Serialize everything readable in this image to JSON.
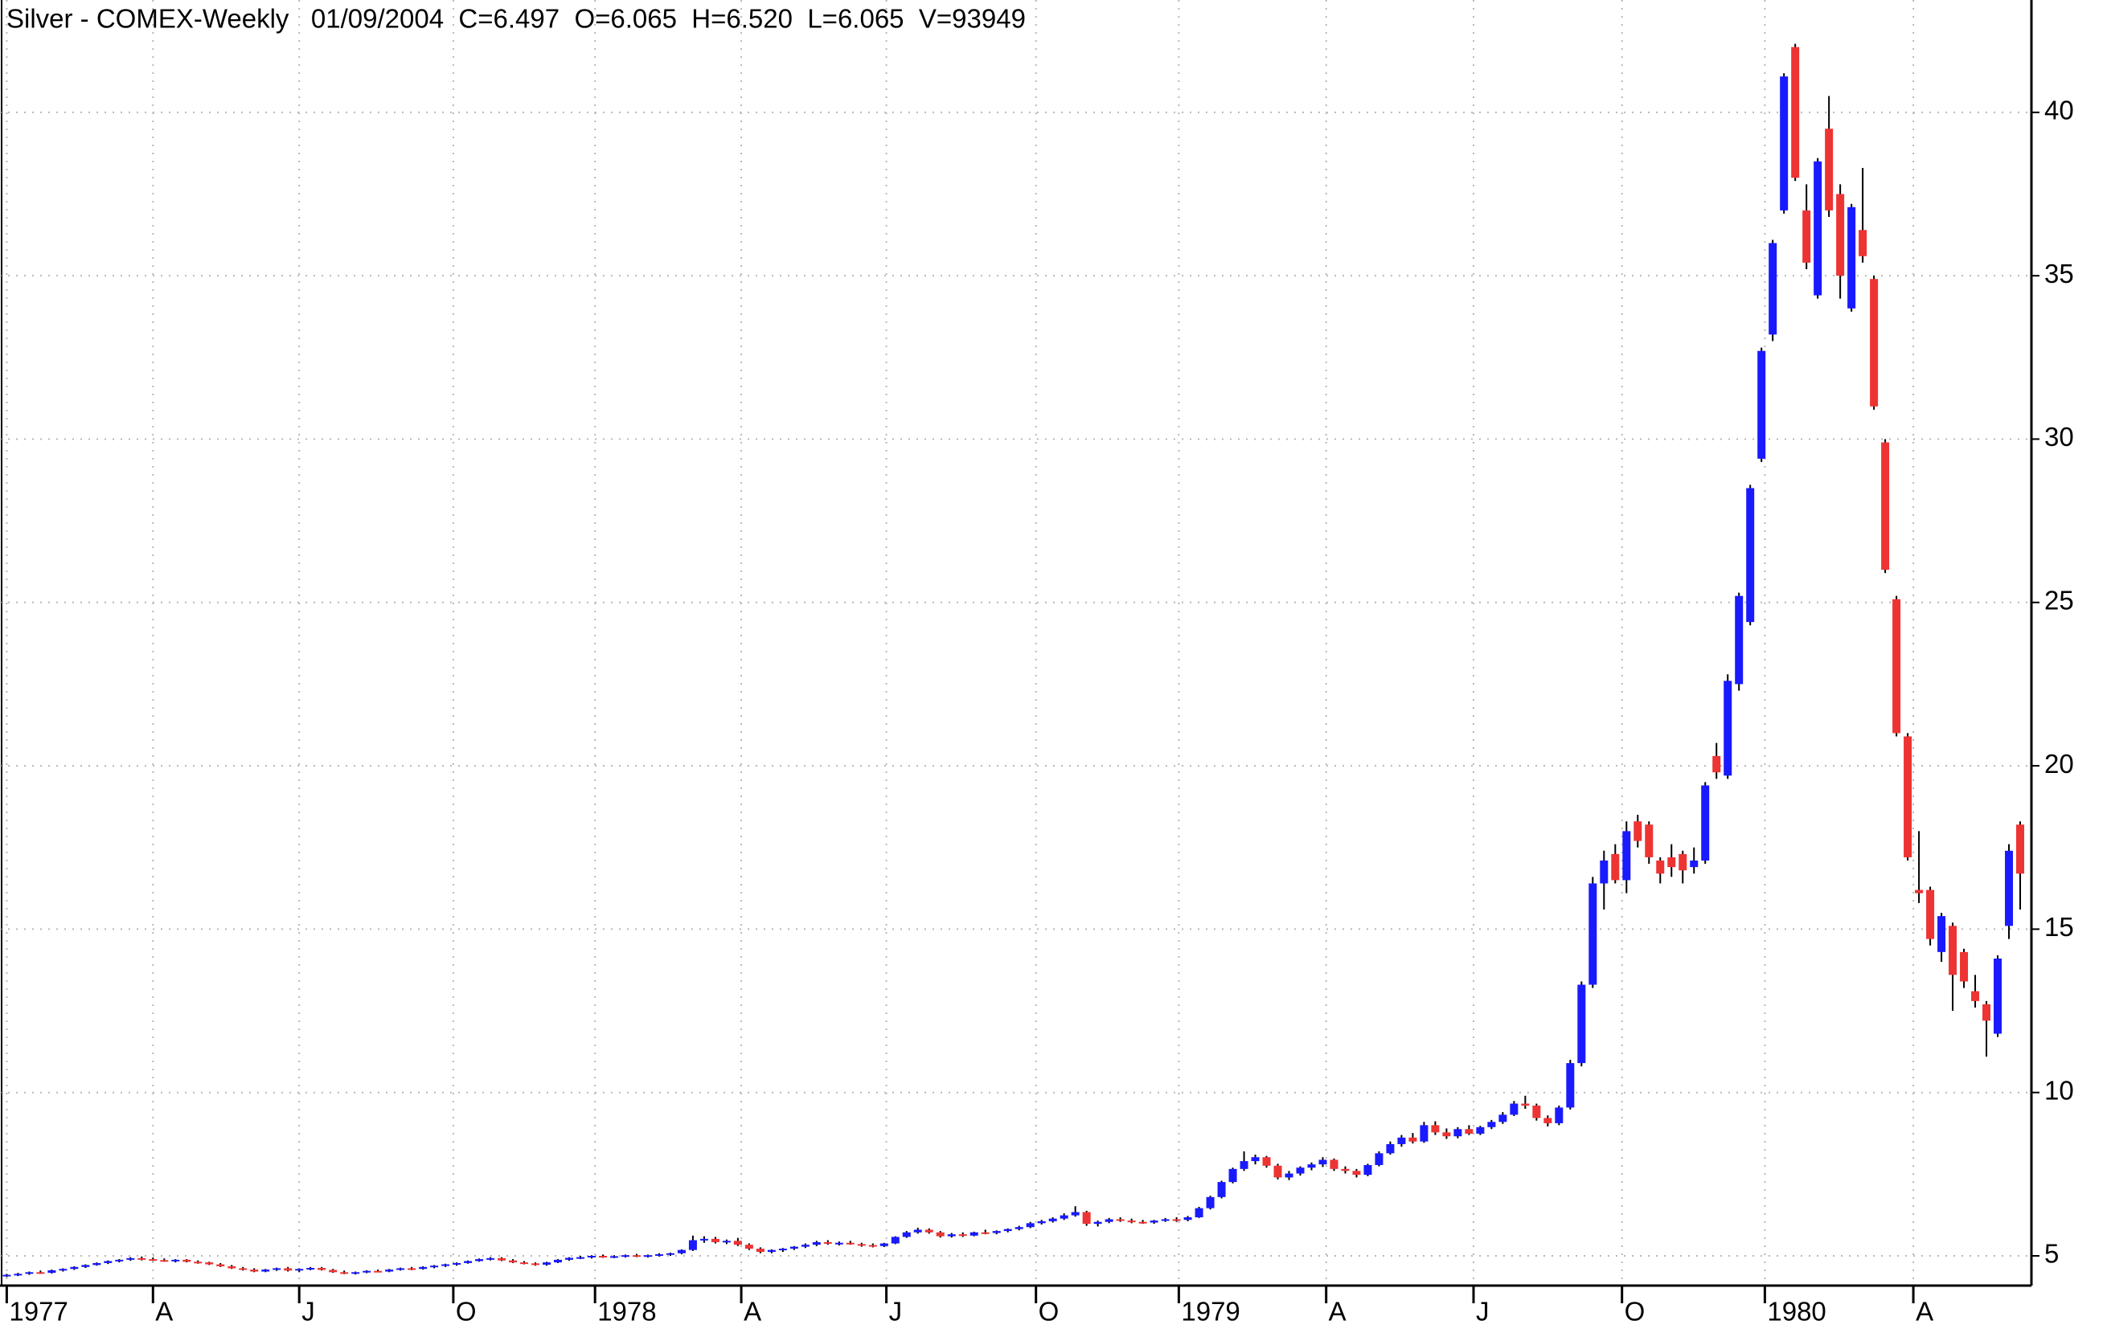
{
  "chart_data": {
    "type": "candlestick",
    "title": "Silver - COMEX-Weekly   01/09/2004  C=6.497  O=6.065  H=6.520  L=6.065  V=93949",
    "up_color": "#1a1aff",
    "down_color": "#ee3333",
    "grid": true,
    "xlim": [
      -0.6,
      180
    ],
    "ylim": [
      4.09,
      43.44
    ],
    "yticks": [
      5,
      10,
      15,
      20,
      25,
      30,
      35,
      40
    ],
    "xticks": [
      {
        "value": 0,
        "label": "1977"
      },
      {
        "value": 13,
        "label": "A"
      },
      {
        "value": 26,
        "label": "J"
      },
      {
        "value": 39.7,
        "label": "O"
      },
      {
        "value": 52.3,
        "label": "1978"
      },
      {
        "value": 65.3,
        "label": "A"
      },
      {
        "value": 78.2,
        "label": "J"
      },
      {
        "value": 91.5,
        "label": "O"
      },
      {
        "value": 104.2,
        "label": "1979"
      },
      {
        "value": 117.3,
        "label": "A"
      },
      {
        "value": 130.4,
        "label": "J"
      },
      {
        "value": 143.6,
        "label": "O"
      },
      {
        "value": 156.3,
        "label": "1980"
      },
      {
        "value": 169.5,
        "label": "A"
      }
    ],
    "ohlc": [
      [
        4.38,
        4.45,
        4.35,
        4.42
      ],
      [
        4.42,
        4.48,
        4.38,
        4.45
      ],
      [
        4.45,
        4.52,
        4.42,
        4.5
      ],
      [
        4.5,
        4.55,
        4.45,
        4.48
      ],
      [
        4.48,
        4.58,
        4.46,
        4.56
      ],
      [
        4.56,
        4.62,
        4.52,
        4.6
      ],
      [
        4.6,
        4.68,
        4.57,
        4.66
      ],
      [
        4.66,
        4.74,
        4.63,
        4.72
      ],
      [
        4.72,
        4.8,
        4.7,
        4.78
      ],
      [
        4.78,
        4.86,
        4.75,
        4.84
      ],
      [
        4.84,
        4.9,
        4.8,
        4.88
      ],
      [
        4.88,
        4.96,
        4.85,
        4.93
      ],
      [
        4.93,
        4.98,
        4.86,
        4.9
      ],
      [
        4.9,
        4.95,
        4.84,
        4.87
      ],
      [
        4.87,
        4.92,
        4.82,
        4.85
      ],
      [
        4.85,
        4.9,
        4.8,
        4.88
      ],
      [
        4.88,
        4.9,
        4.8,
        4.82
      ],
      [
        4.82,
        4.86,
        4.76,
        4.8
      ],
      [
        4.8,
        4.82,
        4.72,
        4.74
      ],
      [
        4.74,
        4.78,
        4.66,
        4.68
      ],
      [
        4.68,
        4.72,
        4.6,
        4.62
      ],
      [
        4.62,
        4.66,
        4.55,
        4.58
      ],
      [
        4.58,
        4.62,
        4.5,
        4.52
      ],
      [
        4.52,
        4.6,
        4.5,
        4.58
      ],
      [
        4.58,
        4.64,
        4.54,
        4.62
      ],
      [
        4.62,
        4.66,
        4.52,
        4.55
      ],
      [
        4.55,
        4.62,
        4.5,
        4.6
      ],
      [
        4.6,
        4.66,
        4.56,
        4.63
      ],
      [
        4.63,
        4.66,
        4.55,
        4.57
      ],
      [
        4.57,
        4.6,
        4.48,
        4.5
      ],
      [
        4.5,
        4.55,
        4.44,
        4.47
      ],
      [
        4.47,
        4.52,
        4.43,
        4.5
      ],
      [
        4.5,
        4.56,
        4.47,
        4.54
      ],
      [
        4.54,
        4.58,
        4.5,
        4.52
      ],
      [
        4.52,
        4.6,
        4.5,
        4.58
      ],
      [
        4.58,
        4.64,
        4.55,
        4.62
      ],
      [
        4.62,
        4.66,
        4.56,
        4.6
      ],
      [
        4.6,
        4.68,
        4.58,
        4.66
      ],
      [
        4.66,
        4.72,
        4.62,
        4.7
      ],
      [
        4.7,
        4.76,
        4.66,
        4.74
      ],
      [
        4.74,
        4.8,
        4.7,
        4.78
      ],
      [
        4.78,
        4.86,
        4.76,
        4.84
      ],
      [
        4.84,
        4.92,
        4.82,
        4.9
      ],
      [
        4.9,
        4.96,
        4.86,
        4.93
      ],
      [
        4.93,
        4.96,
        4.84,
        4.86
      ],
      [
        4.86,
        4.9,
        4.78,
        4.8
      ],
      [
        4.8,
        4.84,
        4.74,
        4.77
      ],
      [
        4.77,
        4.8,
        4.7,
        4.73
      ],
      [
        4.73,
        4.82,
        4.7,
        4.8
      ],
      [
        4.8,
        4.9,
        4.78,
        4.88
      ],
      [
        4.88,
        4.96,
        4.85,
        4.94
      ],
      [
        4.94,
        5.0,
        4.9,
        4.96
      ],
      [
        4.96,
        5.02,
        4.92,
        5.0
      ],
      [
        5.0,
        5.04,
        4.94,
        4.97
      ],
      [
        4.97,
        5.02,
        4.93,
        4.99
      ],
      [
        4.99,
        5.04,
        4.95,
        5.02
      ],
      [
        5.02,
        5.06,
        4.96,
        4.98
      ],
      [
        4.98,
        5.04,
        4.95,
        5.02
      ],
      [
        5.02,
        5.08,
        4.98,
        5.05
      ],
      [
        5.05,
        5.1,
        5.0,
        5.08
      ],
      [
        5.08,
        5.2,
        5.05,
        5.18
      ],
      [
        5.18,
        5.62,
        5.15,
        5.48
      ],
      [
        5.48,
        5.6,
        5.4,
        5.52
      ],
      [
        5.52,
        5.58,
        5.38,
        5.42
      ],
      [
        5.42,
        5.5,
        5.36,
        5.46
      ],
      [
        5.46,
        5.55,
        5.3,
        5.34
      ],
      [
        5.34,
        5.38,
        5.18,
        5.22
      ],
      [
        5.22,
        5.26,
        5.08,
        5.12
      ],
      [
        5.12,
        5.2,
        5.08,
        5.18
      ],
      [
        5.18,
        5.24,
        5.12,
        5.22
      ],
      [
        5.22,
        5.3,
        5.18,
        5.28
      ],
      [
        5.28,
        5.38,
        5.24,
        5.34
      ],
      [
        5.34,
        5.46,
        5.3,
        5.42
      ],
      [
        5.42,
        5.48,
        5.34,
        5.38
      ],
      [
        5.38,
        5.44,
        5.32,
        5.4
      ],
      [
        5.4,
        5.46,
        5.34,
        5.36
      ],
      [
        5.36,
        5.4,
        5.28,
        5.33
      ],
      [
        5.33,
        5.38,
        5.26,
        5.3
      ],
      [
        5.3,
        5.4,
        5.27,
        5.38
      ],
      [
        5.38,
        5.6,
        5.36,
        5.58
      ],
      [
        5.58,
        5.76,
        5.55,
        5.72
      ],
      [
        5.72,
        5.86,
        5.68,
        5.8
      ],
      [
        5.8,
        5.84,
        5.68,
        5.72
      ],
      [
        5.72,
        5.76,
        5.56,
        5.6
      ],
      [
        5.6,
        5.7,
        5.56,
        5.66
      ],
      [
        5.66,
        5.72,
        5.58,
        5.62
      ],
      [
        5.62,
        5.74,
        5.6,
        5.72
      ],
      [
        5.72,
        5.8,
        5.66,
        5.7
      ],
      [
        5.7,
        5.78,
        5.66,
        5.76
      ],
      [
        5.76,
        5.84,
        5.72,
        5.82
      ],
      [
        5.82,
        5.92,
        5.78,
        5.88
      ],
      [
        5.88,
        6.04,
        5.85,
        6.0
      ],
      [
        6.0,
        6.1,
        5.96,
        6.06
      ],
      [
        6.06,
        6.18,
        6.02,
        6.14
      ],
      [
        6.14,
        6.3,
        6.1,
        6.24
      ],
      [
        6.24,
        6.52,
        6.2,
        6.34
      ],
      [
        6.34,
        6.38,
        5.92,
        5.98
      ],
      [
        5.98,
        6.08,
        5.9,
        6.04
      ],
      [
        6.04,
        6.16,
        6.0,
        6.12
      ],
      [
        6.12,
        6.18,
        6.04,
        6.08
      ],
      [
        6.08,
        6.14,
        6.0,
        6.04
      ],
      [
        6.04,
        6.1,
        5.98,
        6.02
      ],
      [
        6.02,
        6.1,
        5.98,
        6.08
      ],
      [
        6.08,
        6.16,
        6.04,
        6.12
      ],
      [
        6.12,
        6.18,
        6.04,
        6.1
      ],
      [
        6.1,
        6.22,
        6.06,
        6.18
      ],
      [
        6.18,
        6.5,
        6.16,
        6.46
      ],
      [
        6.46,
        6.84,
        6.42,
        6.8
      ],
      [
        6.8,
        7.3,
        6.76,
        7.26
      ],
      [
        7.26,
        7.7,
        7.22,
        7.66
      ],
      [
        7.66,
        8.2,
        7.6,
        7.9
      ],
      [
        7.9,
        8.1,
        7.8,
        8.02
      ],
      [
        8.02,
        8.06,
        7.7,
        7.76
      ],
      [
        7.76,
        7.82,
        7.34,
        7.4
      ],
      [
        7.4,
        7.6,
        7.32,
        7.52
      ],
      [
        7.52,
        7.74,
        7.46,
        7.7
      ],
      [
        7.7,
        7.86,
        7.62,
        7.8
      ],
      [
        7.8,
        8.02,
        7.72,
        7.94
      ],
      [
        7.94,
        7.98,
        7.6,
        7.66
      ],
      [
        7.66,
        7.74,
        7.52,
        7.6
      ],
      [
        7.6,
        7.66,
        7.4,
        7.48
      ],
      [
        7.48,
        7.82,
        7.44,
        7.78
      ],
      [
        7.78,
        8.2,
        7.74,
        8.14
      ],
      [
        8.14,
        8.5,
        8.1,
        8.42
      ],
      [
        8.42,
        8.7,
        8.34,
        8.62
      ],
      [
        8.62,
        8.76,
        8.44,
        8.5
      ],
      [
        8.5,
        9.1,
        8.46,
        9.0
      ],
      [
        9.0,
        9.12,
        8.7,
        8.78
      ],
      [
        8.78,
        8.9,
        8.58,
        8.66
      ],
      [
        8.66,
        8.94,
        8.6,
        8.88
      ],
      [
        8.88,
        9.0,
        8.7,
        8.74
      ],
      [
        8.74,
        8.98,
        8.7,
        8.94
      ],
      [
        8.94,
        9.16,
        8.88,
        9.1
      ],
      [
        9.1,
        9.4,
        9.04,
        9.32
      ],
      [
        9.32,
        9.74,
        9.28,
        9.66
      ],
      [
        9.66,
        9.9,
        9.5,
        9.6
      ],
      [
        9.6,
        9.66,
        9.14,
        9.22
      ],
      [
        9.22,
        9.3,
        8.96,
        9.06
      ],
      [
        9.06,
        9.6,
        9.0,
        9.54
      ],
      [
        9.54,
        11.0,
        9.48,
        10.9
      ],
      [
        10.9,
        13.4,
        10.8,
        13.3
      ],
      [
        13.3,
        16.6,
        13.2,
        16.4
      ],
      [
        16.4,
        17.4,
        15.6,
        17.1
      ],
      [
        17.3,
        17.6,
        16.4,
        16.5
      ],
      [
        16.5,
        18.3,
        16.1,
        18.0
      ],
      [
        18.3,
        18.5,
        17.5,
        17.7
      ],
      [
        18.2,
        18.3,
        17.0,
        17.2
      ],
      [
        17.1,
        17.2,
        16.4,
        16.7
      ],
      [
        17.2,
        17.6,
        16.6,
        16.9
      ],
      [
        17.3,
        17.4,
        16.4,
        16.8
      ],
      [
        16.9,
        17.5,
        16.7,
        17.1
      ],
      [
        17.1,
        19.5,
        17.0,
        19.4
      ],
      [
        20.3,
        20.7,
        19.6,
        19.8
      ],
      [
        19.7,
        22.8,
        19.6,
        22.6
      ],
      [
        22.5,
        25.3,
        22.3,
        25.2
      ],
      [
        24.4,
        28.6,
        24.3,
        28.5
      ],
      [
        29.4,
        32.8,
        29.3,
        32.7
      ],
      [
        33.2,
        36.1,
        33.0,
        36.0
      ],
      [
        37.0,
        41.2,
        36.9,
        41.1
      ],
      [
        42.0,
        42.1,
        37.9,
        38.0
      ],
      [
        37.0,
        37.8,
        35.2,
        35.4
      ],
      [
        34.4,
        38.6,
        34.3,
        38.5
      ],
      [
        39.5,
        40.5,
        36.8,
        37.0
      ],
      [
        37.5,
        37.8,
        34.3,
        35.0
      ],
      [
        34.0,
        37.2,
        33.9,
        37.1
      ],
      [
        36.4,
        38.3,
        35.4,
        35.6
      ],
      [
        34.9,
        35.0,
        30.9,
        31.0
      ],
      [
        29.9,
        30.0,
        25.9,
        26.0
      ],
      [
        25.1,
        25.2,
        20.9,
        21.0
      ],
      [
        20.9,
        21.0,
        17.1,
        17.2
      ],
      [
        16.2,
        18.0,
        15.8,
        16.1
      ],
      [
        16.2,
        16.3,
        14.5,
        14.7
      ],
      [
        14.3,
        15.5,
        14.0,
        15.4
      ],
      [
        15.1,
        15.2,
        12.5,
        13.6
      ],
      [
        14.3,
        14.4,
        13.2,
        13.4
      ],
      [
        13.1,
        13.6,
        12.6,
        12.8
      ],
      [
        12.7,
        12.8,
        11.1,
        12.2
      ],
      [
        11.8,
        14.2,
        11.7,
        14.1
      ],
      [
        15.1,
        17.6,
        14.7,
        17.4
      ],
      [
        18.2,
        18.3,
        15.6,
        16.7
      ]
    ]
  }
}
